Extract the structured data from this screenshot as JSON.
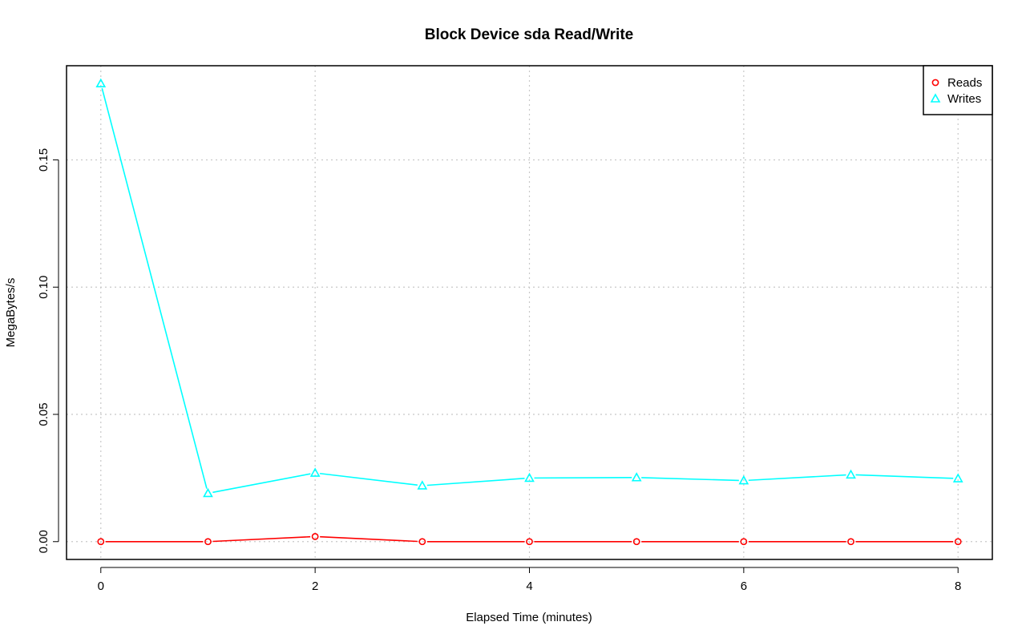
{
  "chart_data": {
    "type": "line",
    "title": "Block Device sda Read/Write",
    "xlabel": "Elapsed Time (minutes)",
    "ylabel": "MegaBytes/s",
    "xlim": [
      -0.32,
      8.32
    ],
    "ylim": [
      -0.007,
      0.187
    ],
    "x_ticks": [
      "0",
      "2",
      "4",
      "6",
      "8"
    ],
    "y_ticks": [
      "0.00",
      "0.05",
      "0.10",
      "0.15"
    ],
    "grid": true,
    "legend_position": "top-right",
    "x": [
      0,
      1,
      2,
      3,
      4,
      5,
      6,
      7,
      8
    ],
    "series": [
      {
        "name": "Reads",
        "color": "#ff0000",
        "marker": "circle",
        "values": [
          0.0,
          0.0,
          0.002,
          0.0,
          0.0,
          0.0,
          0.0,
          0.0,
          0.0
        ]
      },
      {
        "name": "Writes",
        "color": "#00ffff",
        "marker": "triangle",
        "values": [
          0.18,
          0.019,
          0.027,
          0.022,
          0.025,
          0.0252,
          0.024,
          0.0263,
          0.0248
        ]
      }
    ]
  }
}
